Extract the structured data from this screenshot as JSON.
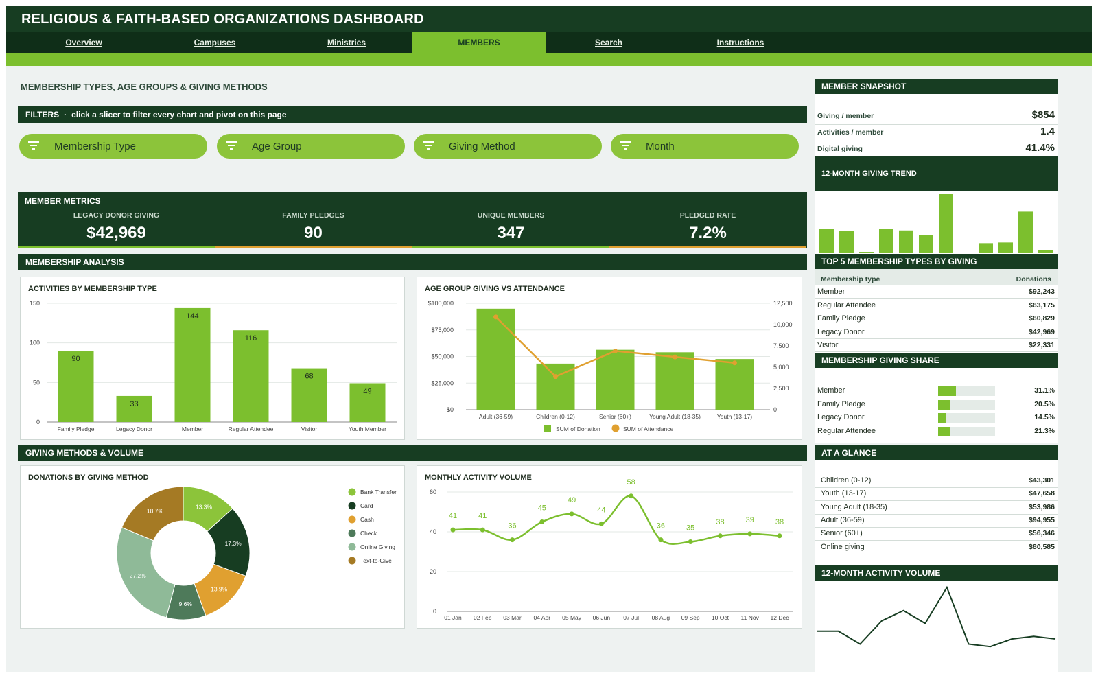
{
  "app": {
    "title": "RELIGIOUS & FAITH-BASED ORGANIZATIONS DASHBOARD"
  },
  "nav": {
    "tabs": [
      {
        "label": "Overview"
      },
      {
        "label": "Campuses"
      },
      {
        "label": "Ministries"
      },
      {
        "label": "MEMBERS",
        "active": true
      },
      {
        "label": "Search"
      },
      {
        "label": "Instructions"
      }
    ]
  },
  "page": {
    "heading": "MEMBERSHIP TYPES, AGE GROUPS & GIVING METHODS"
  },
  "filters": {
    "label": "FILTERS",
    "hint": "click a slicer to filter every chart and pivot on this page",
    "slicers": [
      "Membership Type",
      "Age Group",
      "Giving Method",
      "Month"
    ]
  },
  "metrics": {
    "title": "MEMBER METRICS",
    "items": [
      {
        "label": "LEGACY DONOR GIVING",
        "value": "$42,969",
        "accent": "#7cbf2e"
      },
      {
        "label": "FAMILY PLEDGES",
        "value": "90",
        "accent": "#e0a030"
      },
      {
        "label": "UNIQUE MEMBERS",
        "value": "347",
        "accent": "#7cbf2e"
      },
      {
        "label": "PLEDGED RATE",
        "value": "7.2%",
        "accent": "#e0a030"
      }
    ]
  },
  "sections": {
    "analysis": "MEMBERSHIP ANALYSIS",
    "giving": "GIVING METHODS & VOLUME"
  },
  "colors": {
    "dark": "#173d22",
    "accent": "#7cbf2e",
    "orange": "#e0a030"
  },
  "chart_data": [
    {
      "type": "bar",
      "title": "ACTIVITIES BY MEMBERSHIP TYPE",
      "categories": [
        "Family Pledge",
        "Legacy Donor",
        "Member",
        "Regular Attendee",
        "Visitor",
        "Youth Member"
      ],
      "values": [
        90,
        33,
        144,
        116,
        68,
        49
      ],
      "ylim": [
        0,
        150
      ],
      "yticks": [
        "0",
        "50",
        "100",
        "150"
      ]
    },
    {
      "type": "bar",
      "title": "AGE GROUP GIVING VS ATTENDANCE",
      "categories": [
        "Adult (36-59)",
        "Children (0-12)",
        "Senior (60+)",
        "Young Adult (18-35)",
        "Youth (13-17)"
      ],
      "series": [
        {
          "name": "SUM of Donation",
          "kind": "bar",
          "axis": "left",
          "values": [
            94955,
            43301,
            56346,
            53986,
            47658
          ]
        },
        {
          "name": "SUM of Attendance",
          "kind": "line",
          "axis": "right",
          "values": [
            10900,
            3900,
            6900,
            6200,
            5500
          ]
        }
      ],
      "ylim_left": [
        0,
        100000
      ],
      "ylim_right": [
        0,
        12500
      ],
      "yticks_left": [
        "$0",
        "$25,000",
        "$50,000",
        "$75,000",
        "$100,000"
      ],
      "yticks_right": [
        "0",
        "2,500",
        "5,000",
        "7,500",
        "10,000",
        "12,500"
      ],
      "legend": "bottom"
    },
    {
      "type": "pie",
      "title": "DONATIONS BY GIVING METHOD",
      "slices": [
        {
          "label": "Bank Transfer",
          "value": 13.3,
          "text": "13.3%",
          "color": "#8cc43a"
        },
        {
          "label": "Card",
          "value": 17.3,
          "text": "17.3%",
          "color": "#173d22"
        },
        {
          "label": "Cash",
          "value": 13.9,
          "text": "13.9%",
          "color": "#e0a030"
        },
        {
          "label": "Check",
          "value": 9.6,
          "text": "9.6%",
          "color": "#4e7a5a"
        },
        {
          "label": "Online Giving",
          "value": 27.2,
          "text": "27.2%",
          "color": "#8fba98"
        },
        {
          "label": "Text-to-Give",
          "value": 18.7,
          "text": "18.7%",
          "color": "#a57a24"
        }
      ],
      "legend": "right"
    },
    {
      "type": "line",
      "title": "MONTHLY ACTIVITY VOLUME",
      "x": [
        "01 Jan",
        "02 Feb",
        "03 Mar",
        "04 Apr",
        "05 May",
        "06 Jun",
        "07 Jul",
        "08 Aug",
        "09 Sep",
        "10 Oct",
        "11 Nov",
        "12 Dec"
      ],
      "values": [
        41,
        41,
        36,
        45,
        49,
        44,
        58,
        36,
        35,
        38,
        39,
        38
      ],
      "ylim": [
        0,
        60
      ],
      "yticks": [
        "0",
        "20",
        "40",
        "60"
      ]
    },
    {
      "type": "bar",
      "title": "12-MONTH GIVING TREND",
      "values": [
        36,
        33,
        2,
        36,
        34,
        27,
        88,
        1,
        15,
        16,
        62,
        5
      ]
    },
    {
      "type": "line",
      "title": "12-MONTH ACTIVITY VOLUME",
      "values": [
        41,
        41,
        36,
        45,
        49,
        44,
        58,
        36,
        35,
        38,
        39,
        38
      ]
    }
  ],
  "snapshot": {
    "title": "MEMBER SNAPSHOT",
    "rows": [
      {
        "label": "Giving / member",
        "value": "$854"
      },
      {
        "label": "Activities / member",
        "value": "1.4"
      },
      {
        "label": "Digital giving",
        "value": "41.4%"
      }
    ],
    "trend_title": "12-MONTH GIVING TREND"
  },
  "top5": {
    "title": "TOP 5 MEMBERSHIP TYPES BY GIVING",
    "col1": "Membership type",
    "col2": "Donations",
    "rows": [
      {
        "label": "Member",
        "value": "$92,243"
      },
      {
        "label": "Regular Attendee",
        "value": "$63,175"
      },
      {
        "label": "Family Pledge",
        "value": "$60,829"
      },
      {
        "label": "Legacy Donor",
        "value": "$42,969"
      },
      {
        "label": "Visitor",
        "value": "$22,331"
      }
    ]
  },
  "share": {
    "title": "MEMBERSHIP GIVING SHARE",
    "rows": [
      {
        "label": "Member",
        "value": "31.1%",
        "pct": 31.1
      },
      {
        "label": "Family Pledge",
        "value": "20.5%",
        "pct": 20.5
      },
      {
        "label": "Legacy Donor",
        "value": "14.5%",
        "pct": 14.5
      },
      {
        "label": "Regular Attendee",
        "value": "21.3%",
        "pct": 21.3
      }
    ]
  },
  "glance": {
    "title": "AT A GLANCE",
    "rows": [
      {
        "label": "Children (0-12)",
        "value": "$43,301"
      },
      {
        "label": "Youth (13-17)",
        "value": "$47,658"
      },
      {
        "label": "Young Adult (18-35)",
        "value": "$53,986"
      },
      {
        "label": "Adult (36-59)",
        "value": "$94,955"
      },
      {
        "label": "Senior (60+)",
        "value": "$56,346"
      },
      {
        "label": "Online giving",
        "value": "$80,585"
      }
    ]
  },
  "activity_title": "12-MONTH ACTIVITY VOLUME"
}
